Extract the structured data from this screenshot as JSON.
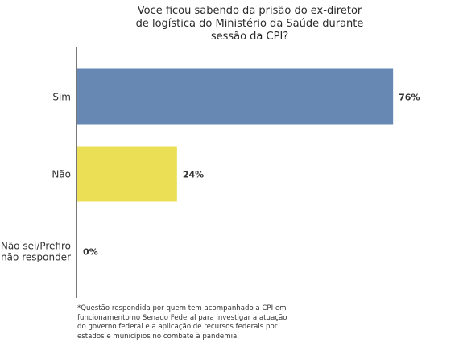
{
  "chart_data": {
    "type": "bar",
    "orientation": "horizontal",
    "title_lines": [
      "Voce ficou sabendo da prisão do ex-diretor",
      "de logística do Ministério da Saúde durante",
      "sessão da CPI?"
    ],
    "categories": [
      [
        "Sim"
      ],
      [
        "Não"
      ],
      [
        "Não sei/Prefiro",
        "não responder"
      ]
    ],
    "values": [
      76,
      24,
      0
    ],
    "data_labels": [
      "76%",
      "24%",
      "0%"
    ],
    "bar_colors": [
      "#6688b3",
      "#ebe055"
    ],
    "xlim": [
      0,
      100
    ],
    "grid": false,
    "legend": "none"
  },
  "footnote_lines": [
    "*Questão respondida por quem tem acompanhado a CPI em",
    "funcionamento no Senado Federal para investigar a atuação",
    "do governo federal e a aplicação de recursos federais por",
    "estados e municípios no combate à pandemia."
  ]
}
